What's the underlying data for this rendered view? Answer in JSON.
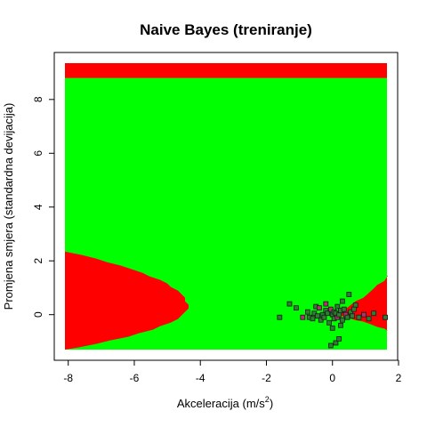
{
  "chart_data": {
    "type": "scatter",
    "title": "Naive Bayes (treniranje)",
    "xlabel": "Akceleracija (m/s²)",
    "xlabel_parts": {
      "main": "Akceleracija (m/s",
      "sup": "2",
      "tail": ")"
    },
    "ylabel": "Promjena smjera (standardna devijacija)",
    "xlim": [
      -8.1,
      1.65
    ],
    "ylim": [
      -1.3,
      9.35
    ],
    "x_ticks": [
      -8,
      -6,
      -4,
      -2,
      0,
      2
    ],
    "y_ticks": [
      0,
      2,
      4,
      6,
      8
    ],
    "grid": false,
    "legend": "none",
    "colors": {
      "class_a_region": "#ff0000",
      "class_b_region": "#00ff00",
      "point_fill": "#2e7d32",
      "point_outline": "#1a1a1a",
      "point_fill_alt": "#b0306a"
    },
    "decision_regions": [
      {
        "class": "red",
        "shape": "band",
        "y_range": [
          8.8,
          9.35
        ]
      },
      {
        "class": "red",
        "shape": "parabola-left",
        "vertex": [
          -4.4,
          0.3
        ],
        "edge_top": 2.35,
        "edge_bottom": -1.3
      },
      {
        "class": "red",
        "shape": "wedge-right",
        "apex": [
          0.1,
          0.0
        ],
        "edge_top": 1.45,
        "edge_bottom": -0.6
      }
    ],
    "points": [
      {
        "x": -1.6,
        "y": -0.1
      },
      {
        "x": -1.3,
        "y": 0.4
      },
      {
        "x": -1.1,
        "y": 0.25
      },
      {
        "x": -0.9,
        "y": -0.1
      },
      {
        "x": -0.75,
        "y": 0.1
      },
      {
        "x": -0.7,
        "y": -0.1
      },
      {
        "x": -0.6,
        "y": -0.15
      },
      {
        "x": -0.55,
        "y": 0.05
      },
      {
        "x": -0.5,
        "y": 0.3
      },
      {
        "x": -0.45,
        "y": -0.05
      },
      {
        "x": -0.4,
        "y": 0.25
      },
      {
        "x": -0.35,
        "y": -0.2
      },
      {
        "x": -0.3,
        "y": 0.0
      },
      {
        "x": -0.25,
        "y": -0.1
      },
      {
        "x": -0.2,
        "y": 0.15
      },
      {
        "x": -0.15,
        "y": 0.05
      },
      {
        "x": -0.1,
        "y": -0.3
      },
      {
        "x": -0.05,
        "y": 0.2
      },
      {
        "x": 0.0,
        "y": 0.0
      },
      {
        "x": 0.05,
        "y": 0.1
      },
      {
        "x": 0.05,
        "y": -0.15
      },
      {
        "x": 0.1,
        "y": 0.05
      },
      {
        "x": 0.1,
        "y": -1.05
      },
      {
        "x": 0.15,
        "y": 0.3
      },
      {
        "x": 0.15,
        "y": -0.1
      },
      {
        "x": 0.2,
        "y": 0.0
      },
      {
        "x": 0.2,
        "y": -0.9
      },
      {
        "x": 0.25,
        "y": 0.15
      },
      {
        "x": 0.25,
        "y": -0.4
      },
      {
        "x": 0.3,
        "y": -0.2
      },
      {
        "x": 0.35,
        "y": 0.2
      },
      {
        "x": 0.4,
        "y": 0.0
      },
      {
        "x": 0.45,
        "y": -0.1
      },
      {
        "x": 0.5,
        "y": 0.75
      },
      {
        "x": 0.55,
        "y": 0.1
      },
      {
        "x": 0.6,
        "y": -0.05
      },
      {
        "x": 0.7,
        "y": 0.35
      },
      {
        "x": 0.8,
        "y": -0.1
      },
      {
        "x": 0.95,
        "y": 0.0
      },
      {
        "x": 1.1,
        "y": -0.15
      },
      {
        "x": 1.25,
        "y": 0.05
      },
      {
        "x": 1.6,
        "y": -0.1
      },
      {
        "x": -0.05,
        "y": -1.15
      },
      {
        "x": 0.0,
        "y": -0.5
      },
      {
        "x": 0.3,
        "y": 0.5
      },
      {
        "x": -0.2,
        "y": 0.4
      },
      {
        "x": 0.65,
        "y": 0.2
      }
    ]
  }
}
